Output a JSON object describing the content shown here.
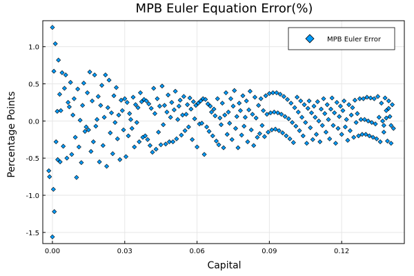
{
  "chart_data": {
    "type": "scatter",
    "title": "MPB Euler Equation Error(%)",
    "xlabel": "Capital",
    "ylabel": "Percentage Points",
    "xlim": [
      -0.004,
      0.146
    ],
    "ylim": [
      -1.65,
      1.35
    ],
    "xticks": [
      0.0,
      0.03,
      0.06,
      0.09,
      0.12
    ],
    "xtick_labels": [
      "0.00",
      "0.03",
      "0.06",
      "0.09",
      "0.12"
    ],
    "yticks": [
      -1.5,
      -1.0,
      -0.5,
      0.0,
      0.5,
      1.0
    ],
    "ytick_labels": [
      "-1.5",
      "-1.0",
      "-0.5",
      "0.0",
      "0.5",
      "1.0"
    ],
    "grid": true,
    "legend": {
      "position": "top-right",
      "entries": [
        "MPB Euler Error"
      ]
    },
    "colors": {
      "marker": "#009af9",
      "marker_edge": "#000000",
      "grid": "#e6e6e6"
    },
    "series": [
      {
        "name": "MPB Euler Error",
        "points": [
          [
            -0.0015,
            -0.67
          ],
          [
            -0.0012,
            -0.75
          ],
          [
            0.0,
            1.26
          ],
          [
            0.0,
            -1.56
          ],
          [
            0.0006,
            0.67
          ],
          [
            0.0004,
            -0.92
          ],
          [
            0.0008,
            -1.22
          ],
          [
            0.0012,
            1.04
          ],
          [
            0.0015,
            -0.28
          ],
          [
            0.002,
            0.13
          ],
          [
            0.0022,
            -0.52
          ],
          [
            0.0025,
            0.82
          ],
          [
            0.003,
            0.36
          ],
          [
            0.0032,
            -0.55
          ],
          [
            0.0035,
            0.14
          ],
          [
            0.004,
            0.65
          ],
          [
            0.0045,
            -0.34
          ],
          [
            0.005,
            0.44
          ],
          [
            0.0055,
            0.62
          ],
          [
            0.006,
            -0.5
          ],
          [
            0.0065,
            0.25
          ],
          [
            0.007,
            0.19
          ],
          [
            0.0075,
            0.52
          ],
          [
            0.008,
            -0.45
          ],
          [
            0.0085,
            0.08
          ],
          [
            0.009,
            0.3
          ],
          [
            0.0095,
            -0.22
          ],
          [
            0.01,
            -0.76
          ],
          [
            0.0105,
            0.43
          ],
          [
            0.011,
            -0.35
          ],
          [
            0.0115,
            0.01
          ],
          [
            0.012,
            -0.56
          ],
          [
            0.0125,
            0.21
          ],
          [
            0.013,
            0.51
          ],
          [
            0.0135,
            -0.14
          ],
          [
            0.014,
            -0.08
          ],
          [
            0.0145,
            0.38
          ],
          [
            0.015,
            -0.12
          ],
          [
            0.0155,
            0.66
          ],
          [
            0.016,
            -0.41
          ],
          [
            0.0165,
            0.27
          ],
          [
            0.017,
            -0.28
          ],
          [
            0.0175,
            0.62
          ],
          [
            0.018,
            -0.07
          ],
          [
            0.0185,
            0.02
          ],
          [
            0.019,
            0.33
          ],
          [
            0.0195,
            -0.55
          ],
          [
            0.02,
            0.21
          ],
          [
            0.0205,
            0.48
          ],
          [
            0.021,
            -0.33
          ],
          [
            0.0215,
            0.05
          ],
          [
            0.022,
            0.62
          ],
          [
            0.0225,
            -0.61
          ],
          [
            0.023,
            0.18
          ],
          [
            0.0235,
            0.55
          ],
          [
            0.024,
            -0.16
          ],
          [
            0.0245,
            0.11
          ],
          [
            0.025,
            -0.44
          ],
          [
            0.0255,
            0.34
          ],
          [
            0.026,
            -0.02
          ],
          [
            0.0265,
            0.45
          ],
          [
            0.027,
            -0.24
          ],
          [
            0.0275,
            0.08
          ],
          [
            0.028,
            -0.52
          ],
          [
            0.0285,
            0.28
          ],
          [
            0.029,
            0.14
          ],
          [
            0.0295,
            -0.12
          ],
          [
            0.03,
            0.3
          ],
          [
            0.0305,
            -0.48
          ],
          [
            0.031,
            0.25
          ],
          [
            0.0315,
            -0.2
          ],
          [
            0.032,
            0.1
          ],
          [
            0.0325,
            0.02
          ],
          [
            0.033,
            -0.1
          ],
          [
            0.0335,
            0.32
          ],
          [
            0.034,
            -0.35
          ],
          [
            0.0345,
            0.22
          ],
          [
            0.035,
            -0.02
          ],
          [
            0.0355,
            0.18
          ],
          [
            0.036,
            -0.28
          ],
          [
            0.0365,
            0.38
          ],
          [
            0.037,
            0.26
          ],
          [
            0.0375,
            -0.22
          ],
          [
            0.038,
            0.29
          ],
          [
            0.0385,
            -0.2
          ],
          [
            0.039,
            0.27
          ],
          [
            0.0395,
            -0.25
          ],
          [
            0.04,
            0.23
          ],
          [
            0.0405,
            -0.33
          ],
          [
            0.041,
            0.17
          ],
          [
            0.0415,
            -0.42
          ],
          [
            0.042,
            0.44
          ],
          [
            0.0425,
            0.1
          ],
          [
            0.043,
            -0.38
          ],
          [
            0.0435,
            0.3
          ],
          [
            0.044,
            -0.15
          ],
          [
            0.0445,
            0.2
          ],
          [
            0.045,
            -0.32
          ],
          [
            0.0455,
            0.47
          ],
          [
            0.046,
            -0.05
          ],
          [
            0.0465,
            0.21
          ],
          [
            0.047,
            -0.31
          ],
          [
            0.0475,
            0.12
          ],
          [
            0.048,
            0.35
          ],
          [
            0.0485,
            -0.28
          ],
          [
            0.049,
            0.05
          ],
          [
            0.0495,
            0.25
          ],
          [
            0.05,
            -0.28
          ],
          [
            0.0505,
            0.15
          ],
          [
            0.051,
            0.4
          ],
          [
            0.0515,
            -0.24
          ],
          [
            0.052,
            0.02
          ],
          [
            0.0525,
            0.2
          ],
          [
            0.053,
            0.28
          ],
          [
            0.0535,
            -0.19
          ],
          [
            0.054,
            0.08
          ],
          [
            0.0545,
            0.33
          ],
          [
            0.055,
            -0.13
          ],
          [
            0.0555,
            0.09
          ],
          [
            0.056,
            0.22
          ],
          [
            0.0565,
            -0.08
          ],
          [
            0.057,
            0.31
          ],
          [
            0.0575,
            0.16
          ],
          [
            0.058,
            -0.25
          ],
          [
            0.0585,
            0.26
          ],
          [
            0.059,
            0.03
          ],
          [
            0.0595,
            0.21
          ],
          [
            0.06,
            -0.35
          ],
          [
            0.0605,
            0.24
          ],
          [
            0.061,
            -0.04
          ],
          [
            0.0615,
            0.27
          ],
          [
            0.062,
            -0.03
          ],
          [
            0.0625,
            0.3
          ],
          [
            0.063,
            -0.45
          ],
          [
            0.0635,
            0.29
          ],
          [
            0.064,
            -0.08
          ],
          [
            0.0645,
            0.23
          ],
          [
            0.065,
            -0.14
          ],
          [
            0.0655,
            0.2
          ],
          [
            0.066,
            0.12
          ],
          [
            0.0665,
            -0.2
          ],
          [
            0.067,
            0.16
          ],
          [
            0.0675,
            0.07
          ],
          [
            0.068,
            -0.27
          ],
          [
            0.0685,
            0.3
          ],
          [
            0.069,
            -0.32
          ],
          [
            0.0695,
            0.04
          ],
          [
            0.07,
            -0.05
          ],
          [
            0.0705,
            0.24
          ],
          [
            0.071,
            -0.36
          ],
          [
            0.0715,
            0.08
          ],
          [
            0.072,
            0.38
          ],
          [
            0.0725,
            -0.18
          ],
          [
            0.073,
            0.12
          ],
          [
            0.0735,
            -0.03
          ],
          [
            0.074,
            0.3
          ],
          [
            0.0745,
            -0.25
          ],
          [
            0.075,
            0.2
          ],
          [
            0.0755,
            0.41
          ],
          [
            0.076,
            -0.1
          ],
          [
            0.0765,
            0.06
          ],
          [
            0.077,
            -0.36
          ],
          [
            0.0775,
            0.24
          ],
          [
            0.078,
            0.14
          ],
          [
            0.0785,
            -0.19
          ],
          [
            0.079,
            0.34
          ],
          [
            0.0795,
            -0.07
          ],
          [
            0.08,
            0.05
          ],
          [
            0.0805,
            0.27
          ],
          [
            0.081,
            -0.28
          ],
          [
            0.0815,
            0.15
          ],
          [
            0.082,
            0.4
          ],
          [
            0.0825,
            -0.12
          ],
          [
            0.083,
            0.09
          ],
          [
            0.0835,
            -0.33
          ],
          [
            0.084,
            0.32
          ],
          [
            0.0845,
            0.04
          ],
          [
            0.085,
            -0.22
          ],
          [
            0.0855,
            0.21
          ],
          [
            0.086,
            -0.17
          ],
          [
            0.0865,
            0.3
          ],
          [
            0.087,
            -0.06
          ],
          [
            0.0875,
            0.14
          ],
          [
            0.088,
            -0.21
          ],
          [
            0.0885,
            0.34
          ],
          [
            0.089,
            0.09
          ],
          [
            0.0895,
            -0.15
          ],
          [
            0.09,
            0.37
          ],
          [
            0.0905,
            0.11
          ],
          [
            0.091,
            -0.12
          ],
          [
            0.0915,
            0.38
          ],
          [
            0.092,
            0.12
          ],
          [
            0.0925,
            -0.11
          ],
          [
            0.093,
            0.38
          ],
          [
            0.0935,
            0.11
          ],
          [
            0.094,
            -0.13
          ],
          [
            0.0945,
            0.36
          ],
          [
            0.095,
            0.09
          ],
          [
            0.0955,
            -0.16
          ],
          [
            0.096,
            0.33
          ],
          [
            0.0965,
            0.06
          ],
          [
            0.097,
            -0.2
          ],
          [
            0.0975,
            0.29
          ],
          [
            0.098,
            0.03
          ],
          [
            0.0985,
            -0.24
          ],
          [
            0.099,
            0.24
          ],
          [
            0.0995,
            -0.02
          ],
          [
            0.1,
            -0.29
          ],
          [
            0.1005,
            0.18
          ],
          [
            0.101,
            -0.07
          ],
          [
            0.1015,
            0.32
          ],
          [
            0.102,
            0.12
          ],
          [
            0.1025,
            -0.13
          ],
          [
            0.103,
            0.27
          ],
          [
            0.1035,
            0.05
          ],
          [
            0.104,
            -0.2
          ],
          [
            0.1045,
            0.22
          ],
          [
            0.105,
            -0.02
          ],
          [
            0.1055,
            -0.3
          ],
          [
            0.106,
            0.17
          ],
          [
            0.1065,
            0.27
          ],
          [
            0.107,
            -0.09
          ],
          [
            0.1075,
            0.11
          ],
          [
            0.108,
            -0.25
          ],
          [
            0.1085,
            0.2
          ],
          [
            0.109,
            0.05
          ],
          [
            0.1095,
            -0.18
          ],
          [
            0.11,
            0.26
          ],
          [
            0.1105,
            0.0
          ],
          [
            0.111,
            -0.28
          ],
          [
            0.1115,
            0.16
          ],
          [
            0.112,
            -0.06
          ],
          [
            0.1125,
            0.3
          ],
          [
            0.113,
            0.1
          ],
          [
            0.1135,
            -0.15
          ],
          [
            0.114,
            0.22
          ],
          [
            0.1145,
            0.02
          ],
          [
            0.115,
            -0.24
          ],
          [
            0.1155,
            0.16
          ],
          [
            0.116,
            0.31
          ],
          [
            0.1165,
            -0.06
          ],
          [
            0.117,
            0.11
          ],
          [
            0.1175,
            -0.3
          ],
          [
            0.118,
            0.25
          ],
          [
            0.1185,
            -0.1
          ],
          [
            0.119,
            0.06
          ],
          [
            0.1195,
            0.2
          ],
          [
            0.12,
            -0.18
          ],
          [
            0.1205,
            0.14
          ],
          [
            0.121,
            0.27
          ],
          [
            0.1215,
            -0.08
          ],
          [
            0.122,
            0.02
          ],
          [
            0.1225,
            -0.26
          ],
          [
            0.123,
            0.22
          ],
          [
            0.1235,
            -0.13
          ],
          [
            0.124,
            0.08
          ],
          [
            0.1245,
            0.18
          ],
          [
            0.125,
            -0.22
          ],
          [
            0.1255,
            0.28
          ],
          [
            0.126,
            -0.02
          ],
          [
            0.1265,
            0.1
          ],
          [
            0.127,
            -0.2
          ],
          [
            0.1275,
            0.3
          ],
          [
            0.128,
            0.02
          ],
          [
            0.1285,
            -0.18
          ],
          [
            0.129,
            0.3
          ],
          [
            0.1295,
            0.02
          ],
          [
            0.13,
            -0.18
          ],
          [
            0.1305,
            0.32
          ],
          [
            0.131,
            0.0
          ],
          [
            0.1315,
            -0.2
          ],
          [
            0.132,
            0.31
          ],
          [
            0.1325,
            -0.02
          ],
          [
            0.133,
            -0.22
          ],
          [
            0.1335,
            0.3
          ],
          [
            0.134,
            -0.04
          ],
          [
            0.1345,
            -0.24
          ],
          [
            0.135,
            0.33
          ],
          [
            0.1355,
            0.05
          ],
          [
            0.136,
            -0.28
          ],
          [
            0.1365,
            0.24
          ],
          [
            0.137,
            0.0
          ],
          [
            0.1375,
            -0.15
          ],
          [
            0.138,
            0.31
          ],
          [
            0.1385,
            0.04
          ],
          [
            0.139,
            -0.27
          ],
          [
            0.1395,
            0.27
          ],
          [
            0.14,
            0.06
          ],
          [
            0.1405,
            -0.3
          ],
          [
            0.141,
            0.22
          ],
          [
            0.1415,
            -0.1
          ],
          [
            0.1395,
            0.17
          ],
          [
            0.1375,
            -0.06
          ],
          [
            0.1385,
            0.14
          ],
          [
            0.1405,
            -0.06
          ]
        ]
      }
    ]
  }
}
